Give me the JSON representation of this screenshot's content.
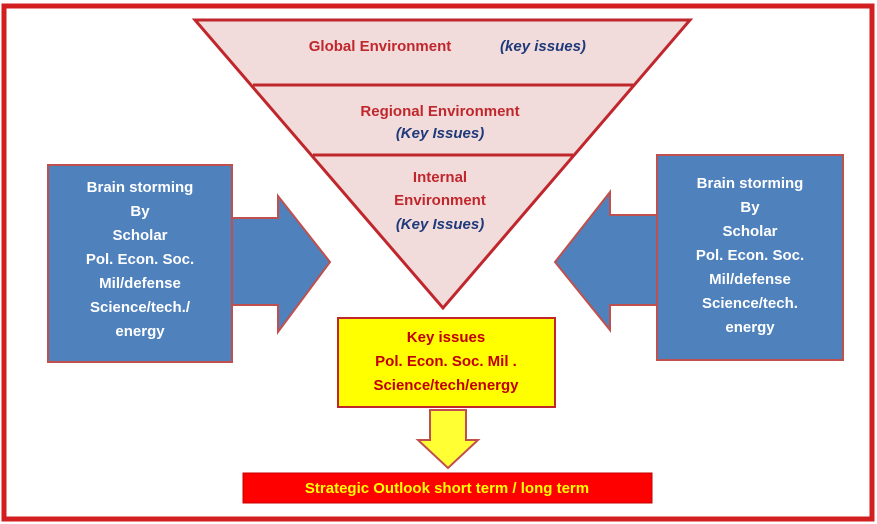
{
  "funnel": [
    {
      "title": "Global Environment",
      "note": "(key issues)"
    },
    {
      "title": "Regional Environment",
      "note": "(Key Issues)"
    },
    {
      "title": [
        "Internal",
        "Environment"
      ],
      "note": "(Key Issues)"
    }
  ],
  "left_box": [
    "Brain storming",
    "By",
    "Scholar",
    "Pol. Econ. Soc.",
    "Mil/defense",
    "Science/tech./",
    "energy"
  ],
  "right_box": [
    "Brain storming",
    "By",
    "Scholar",
    "Pol. Econ. Soc.",
    "Mil/defense",
    "Science/tech.",
    "energy"
  ],
  "key_issues": [
    "Key issues",
    "Pol. Econ. Soc. Mil .",
    "Science/tech/energy"
  ],
  "outlook": "Strategic Outlook short term / long term"
}
